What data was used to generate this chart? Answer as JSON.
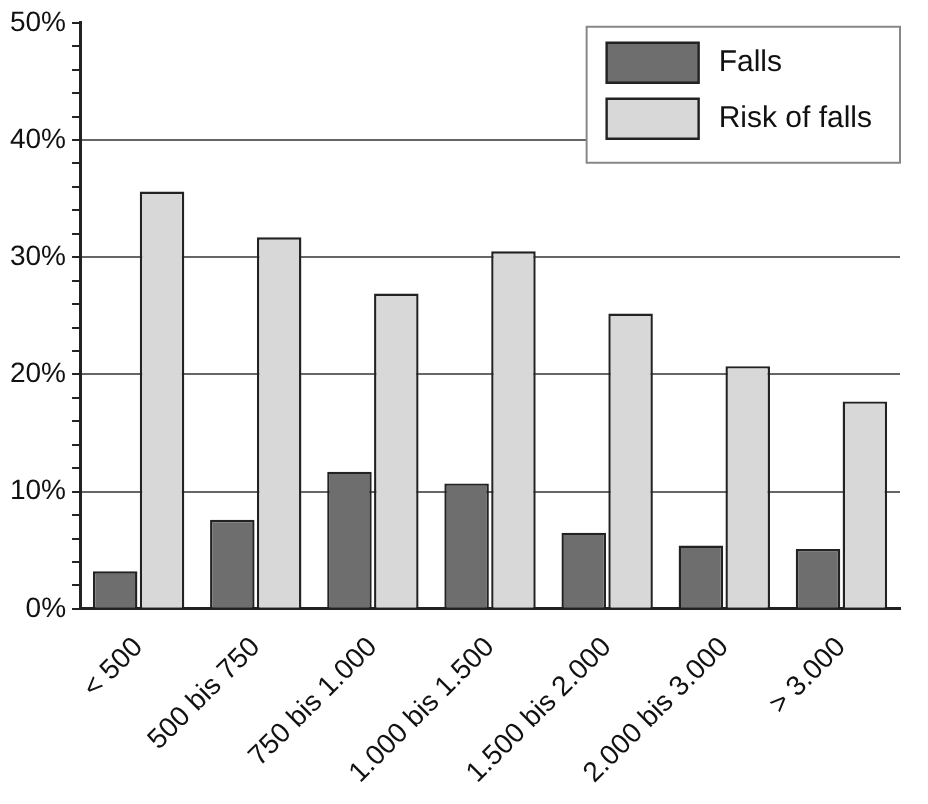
{
  "chart_data": {
    "type": "bar",
    "categories": [
      "< 500",
      "500 bis 750",
      "750 bis 1.000",
      "1.000 bis 1.500",
      "1.500 bis 2.000",
      "2.000 bis 3.000",
      "> 3.000"
    ],
    "series": [
      {
        "name": "Falls",
        "color": "#6e6e6e",
        "values": [
          3.2,
          7.6,
          11.7,
          10.7,
          6.5,
          5.4,
          5.1
        ]
      },
      {
        "name": "Risk of falls",
        "color": "#d8d8d8",
        "values": [
          35.6,
          31.7,
          26.9,
          30.5,
          25.2,
          20.7,
          17.7
        ]
      }
    ],
    "ylim": [
      0,
      50
    ],
    "yticks": [
      {
        "value": 0,
        "label": "0%"
      },
      {
        "value": 2,
        "label": null
      },
      {
        "value": 4,
        "label": null
      },
      {
        "value": 6,
        "label": null
      },
      {
        "value": 8,
        "label": null
      },
      {
        "value": 10,
        "label": "10%"
      },
      {
        "value": 12,
        "label": null
      },
      {
        "value": 14,
        "label": null
      },
      {
        "value": 16,
        "label": null
      },
      {
        "value": 18,
        "label": null
      },
      {
        "value": 20,
        "label": "20%"
      },
      {
        "value": 22,
        "label": null
      },
      {
        "value": 24,
        "label": null
      },
      {
        "value": 26,
        "label": null
      },
      {
        "value": 28,
        "label": null
      },
      {
        "value": 30,
        "label": "30%"
      },
      {
        "value": 32,
        "label": null
      },
      {
        "value": 34,
        "label": null
      },
      {
        "value": 36,
        "label": null
      },
      {
        "value": 38,
        "label": null
      },
      {
        "value": 40,
        "label": "40%"
      },
      {
        "value": 42,
        "label": null
      },
      {
        "value": 44,
        "label": null
      },
      {
        "value": 46,
        "label": null
      },
      {
        "value": 48,
        "label": null
      },
      {
        "value": 50,
        "label": "50%"
      }
    ],
    "grid": "y",
    "legend": "top right"
  }
}
